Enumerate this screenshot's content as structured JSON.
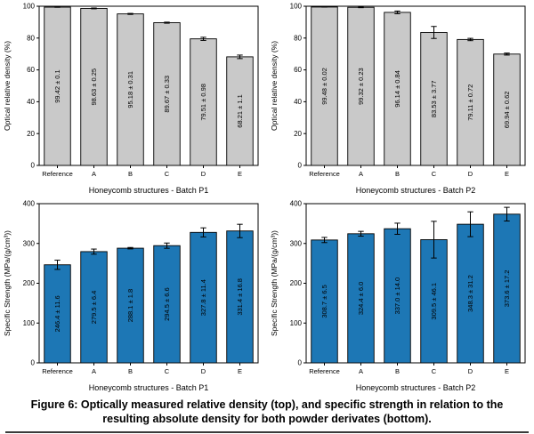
{
  "caption": "Figure 6: Optically measured relative density (top), and specific strength in relation to the resulting absolute density for both powder derivates (bottom).",
  "colors": {
    "density_bar": "#c9c9c9",
    "strength_bar": "#1d77b5",
    "bar_edge": "#000000",
    "error_bar": "#000000",
    "text": "#000000"
  },
  "chart_data": [
    {
      "type": "bar",
      "title": "",
      "categories": [
        "Reference",
        "A",
        "B",
        "C",
        "D",
        "E"
      ],
      "values": [
        99.42,
        98.63,
        95.18,
        89.67,
        79.51,
        68.21
      ],
      "errors": [
        0.1,
        0.25,
        0.31,
        0.33,
        0.98,
        1.1
      ],
      "bar_labels": [
        "99.42 ± 0.1",
        "98.63 ± 0.25",
        "95.18 ± 0.31",
        "89.67 ± 0.33",
        "79.51 ± 0.98",
        "68.21 ± 1.1"
      ],
      "xlabel": "Honeycomb structures - Batch P1",
      "ylabel": "Optical relative density (%)",
      "ylim": [
        0,
        100
      ],
      "yticks": [
        0,
        20,
        40,
        60,
        80,
        100
      ],
      "grid": false,
      "legend": "none",
      "bar_color": "#c9c9c9"
    },
    {
      "type": "bar",
      "title": "",
      "categories": [
        "Reference",
        "A",
        "B",
        "C",
        "D",
        "E"
      ],
      "values": [
        99.48,
        99.32,
        96.14,
        83.53,
        79.11,
        69.94
      ],
      "errors": [
        0.02,
        0.23,
        0.84,
        3.77,
        0.72,
        0.62
      ],
      "bar_labels": [
        "99.48 ± 0.02",
        "99.32 ± 0.23",
        "96.14 ± 0.84",
        "83.53 ± 3.77",
        "79.11 ± 0.72",
        "69.94 ± 0.62"
      ],
      "xlabel": "Honeycomb structures - Batch P2",
      "ylabel": "Optical relative density (%)",
      "ylim": [
        0,
        100
      ],
      "yticks": [
        0,
        20,
        40,
        60,
        80,
        100
      ],
      "grid": false,
      "legend": "none",
      "bar_color": "#c9c9c9"
    },
    {
      "type": "bar",
      "title": "",
      "categories": [
        "Reference",
        "A",
        "B",
        "C",
        "D",
        "E"
      ],
      "values": [
        246.4,
        279.5,
        288.1,
        294.5,
        327.8,
        331.4
      ],
      "errors": [
        11.6,
        6.4,
        1.8,
        6.6,
        11.4,
        16.8
      ],
      "bar_labels": [
        "246.4 ± 11.6",
        "279.5 ± 6.4",
        "288.1 ± 1.8",
        "294.5 ± 6.6",
        "327.8 ± 11.4",
        "331.4 ± 16.8"
      ],
      "xlabel": "Honeycomb structures - Batch P1",
      "ylabel": "Specific Strength (MPa/(g/cm³))",
      "ylim": [
        0,
        400
      ],
      "yticks": [
        0,
        100,
        200,
        300,
        400
      ],
      "grid": false,
      "legend": "none",
      "bar_color": "#1d77b5"
    },
    {
      "type": "bar",
      "title": "",
      "categories": [
        "Reference",
        "A",
        "B",
        "C",
        "D",
        "E"
      ],
      "values": [
        308.7,
        324.4,
        337.0,
        309.5,
        348.3,
        373.6
      ],
      "errors": [
        6.5,
        6.0,
        14.0,
        46.1,
        31.2,
        17.2
      ],
      "bar_labels": [
        "308.7 ± 6.5",
        "324.4 ± 6.0",
        "337.0 ± 14.0",
        "309.5 ± 46.1",
        "348.3 ± 31.2",
        "373.6 ± 17.2"
      ],
      "xlabel": "Honeycomb structures - Batch P2",
      "ylabel": "Specific Strength (MPa/(g/cm³))",
      "ylim": [
        0,
        400
      ],
      "yticks": [
        0,
        100,
        200,
        300,
        400
      ],
      "grid": false,
      "legend": "none",
      "bar_color": "#1d77b5"
    }
  ]
}
